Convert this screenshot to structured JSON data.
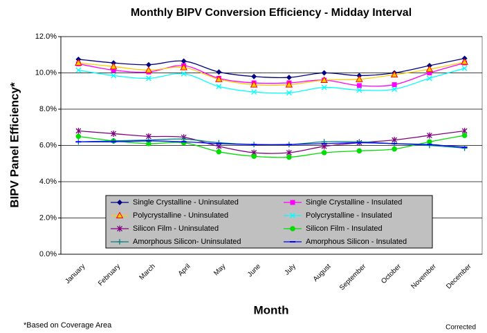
{
  "chart_data": {
    "type": "line",
    "title": "Monthly BIPV Conversion Efficiency - Midday Interval",
    "x_label": "Month",
    "y_label": "BIPV Panel Efficiency*",
    "footnote": "*Based on Coverage Area",
    "note": "Corrected",
    "categories": [
      "January",
      "February",
      "March",
      "April",
      "May",
      "June",
      "July",
      "August",
      "September",
      "October",
      "November",
      "December"
    ],
    "ylim": [
      0,
      12
    ],
    "yticks": [
      {
        "value": 0,
        "label": "0.0%"
      },
      {
        "value": 2,
        "label": "2.0%"
      },
      {
        "value": 4,
        "label": "4.0%"
      },
      {
        "value": 6,
        "label": "6.0%"
      },
      {
        "value": 8,
        "label": "8.0%"
      },
      {
        "value": 10,
        "label": "10.0%"
      },
      {
        "value": 12,
        "label": "12.0%"
      }
    ],
    "grid": true,
    "series": [
      {
        "name": "Single Crystalline - Uninsulated",
        "color": "#000080",
        "marker": "diamond",
        "values": [
          10.75,
          10.55,
          10.45,
          10.65,
          10.05,
          9.8,
          9.75,
          10.0,
          9.85,
          10.0,
          10.4,
          10.8
        ]
      },
      {
        "name": "Single Crystalline - Insulated",
        "color": "#ff00ff",
        "marker": "square",
        "values": [
          10.5,
          10.15,
          10.05,
          10.4,
          9.7,
          9.45,
          9.45,
          9.6,
          9.3,
          9.35,
          10.0,
          10.55
        ]
      },
      {
        "name": "Polycrystalline - Uninsulated",
        "color": "#ffcc00",
        "marker": "triangle",
        "values": [
          10.55,
          10.35,
          10.15,
          10.3,
          9.65,
          9.35,
          9.35,
          9.6,
          9.65,
          9.9,
          10.2,
          10.6
        ]
      },
      {
        "name": "Polycrystalline - Insulated",
        "color": "#00ffff",
        "marker": "x",
        "values": [
          10.15,
          9.85,
          9.7,
          9.95,
          9.25,
          8.95,
          8.9,
          9.2,
          9.05,
          9.1,
          9.7,
          10.25
        ]
      },
      {
        "name": "Silicon Film - Uninsulated",
        "color": "#800080",
        "marker": "star",
        "values": [
          6.8,
          6.65,
          6.5,
          6.45,
          5.95,
          5.6,
          5.6,
          5.95,
          6.15,
          6.3,
          6.55,
          6.8
        ]
      },
      {
        "name": "Silicon Film - Insulated",
        "color": "#00dd00",
        "marker": "circle",
        "values": [
          6.5,
          6.25,
          6.1,
          6.15,
          5.65,
          5.4,
          5.35,
          5.6,
          5.7,
          5.8,
          6.2,
          6.55
        ]
      },
      {
        "name": "Amorphous Silicon- Uninsulated",
        "color": "#008080",
        "marker": "plus",
        "values": [
          6.2,
          6.25,
          6.3,
          6.35,
          6.15,
          6.05,
          6.05,
          6.2,
          6.2,
          6.1,
          6.0,
          5.85
        ]
      },
      {
        "name": "Amorphous Silicon - Insulated",
        "color": "#0000ff",
        "marker": "dash",
        "values": [
          6.2,
          6.2,
          6.25,
          6.2,
          6.1,
          6.05,
          6.05,
          6.1,
          6.15,
          6.1,
          6.05,
          5.9
        ]
      }
    ]
  }
}
